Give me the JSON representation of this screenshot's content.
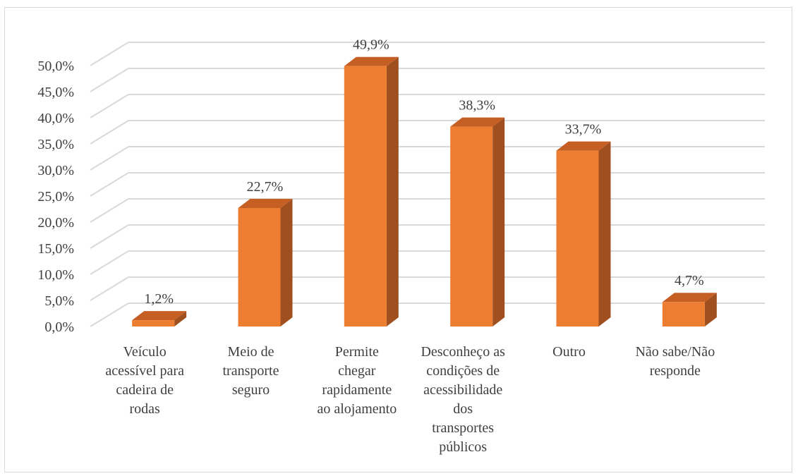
{
  "chart_data": {
    "type": "bar",
    "title": "",
    "xlabel": "",
    "ylabel": "",
    "ylim": [
      0,
      50
    ],
    "yticks": [
      "0,0%",
      "5,0%",
      "10,0%",
      "15,0%",
      "20,0%",
      "25,0%",
      "30,0%",
      "35,0%",
      "40,0%",
      "45,0%",
      "50,0%"
    ],
    "grid": true,
    "style": "3d-column",
    "categories": [
      [
        "Veículo",
        "acessível para",
        "cadeira de",
        "rodas"
      ],
      [
        "Meio de",
        "transporte",
        "seguro"
      ],
      [
        "Permite",
        "chegar",
        "rapidamente",
        "ao alojamento"
      ],
      [
        "Desconheço as",
        "condições de",
        "acessibilidade",
        "dos",
        "transportes",
        "públicos"
      ],
      [
        "Outro"
      ],
      [
        "Não sabe/Não",
        "responde"
      ]
    ],
    "values": [
      1.2,
      22.7,
      49.9,
      38.3,
      33.7,
      4.7
    ],
    "data_labels": [
      "1,2%",
      "22,7%",
      "49,9%",
      "38,3%",
      "33,7%",
      "4,7%"
    ],
    "colors": {
      "front": "#ED7D31",
      "side": "#A0501E",
      "top": "#C65F24",
      "grid": "#d9d9d9",
      "text": "#404040"
    }
  }
}
